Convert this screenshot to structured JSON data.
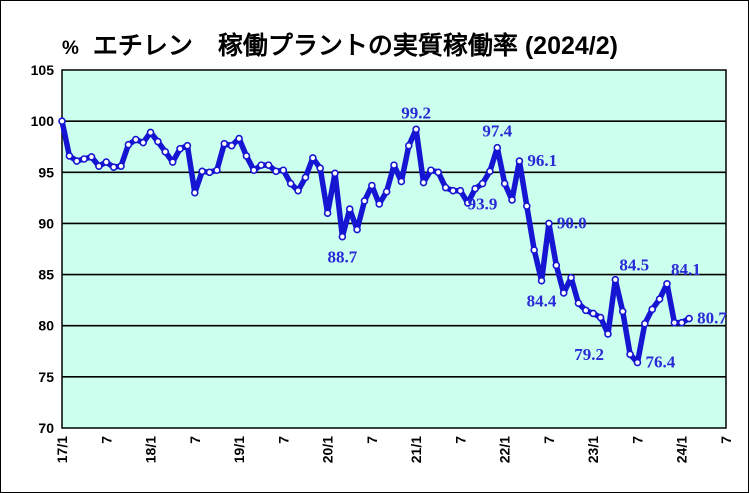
{
  "title": {
    "unit": "%",
    "text": "エチレン　稼働プラントの実質稼働率 (2024/2)"
  },
  "chart_data": {
    "type": "line",
    "ylim": [
      70,
      105
    ],
    "y_ticks": [
      70,
      75,
      80,
      85,
      90,
      95,
      100,
      105
    ],
    "x_tick_labels": [
      "17/1",
      "7",
      "18/1",
      "7",
      "19/1",
      "7",
      "20/1",
      "7",
      "21/1",
      "7",
      "22/1",
      "7",
      "23/1",
      "7",
      "24/1",
      "7"
    ],
    "x_start_month": "2017-01",
    "months_total": 90,
    "grid": true,
    "colors": {
      "line": "#1515d2",
      "marker_fill": "#ffffff",
      "background": "#ccffee",
      "label": "#2a2ad6"
    },
    "values": [
      100.0,
      96.6,
      96.1,
      96.3,
      96.5,
      95.6,
      96.0,
      95.5,
      95.6,
      97.7,
      98.2,
      97.9,
      98.9,
      98.0,
      97.0,
      96.0,
      97.3,
      97.6,
      93.0,
      95.1,
      95.0,
      95.2,
      97.8,
      97.6,
      98.3,
      96.6,
      95.2,
      95.7,
      95.7,
      95.1,
      95.2,
      93.9,
      93.2,
      94.5,
      96.4,
      95.4,
      91.0,
      94.9,
      88.7,
      91.4,
      89.4,
      92.2,
      93.7,
      91.9,
      93.1,
      95.7,
      94.1,
      97.6,
      99.2,
      94.0,
      95.2,
      95.0,
      93.5,
      93.2,
      93.2,
      92.0,
      93.4,
      93.9,
      95.1,
      97.4,
      93.9,
      92.3,
      96.1,
      91.7,
      87.4,
      84.4,
      90.0,
      85.9,
      83.2,
      84.7,
      82.2,
      81.5,
      81.2,
      80.8,
      79.2,
      84.5,
      81.4,
      77.2,
      76.4,
      80.2,
      81.6,
      82.6,
      84.1,
      80.3,
      80.3,
      80.7
    ],
    "data_labels": [
      {
        "index": 38,
        "text": "88.7",
        "pos": "below"
      },
      {
        "index": 48,
        "text": "99.2",
        "pos": "above"
      },
      {
        "index": 57,
        "text": "93.9",
        "pos": "below"
      },
      {
        "index": 59,
        "text": "97.4",
        "pos": "above"
      },
      {
        "index": 62,
        "text": "96.1",
        "pos": "right"
      },
      {
        "index": 65,
        "text": "84.4",
        "pos": "below"
      },
      {
        "index": 66,
        "text": "90.0",
        "pos": "right"
      },
      {
        "index": 74,
        "text": "79.2",
        "pos": "below-left"
      },
      {
        "index": 75,
        "text": "84.5",
        "pos": "above-right"
      },
      {
        "index": 78,
        "text": "76.4",
        "pos": "right"
      },
      {
        "index": 82,
        "text": "84.1",
        "pos": "above-right"
      },
      {
        "index": 85,
        "text": "80.7",
        "pos": "right"
      }
    ]
  }
}
